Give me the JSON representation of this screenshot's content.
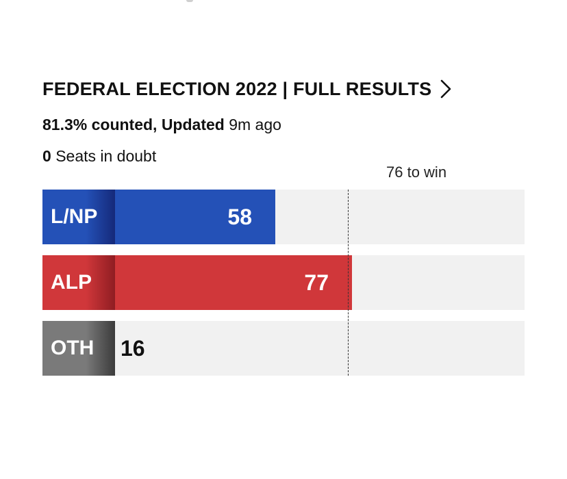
{
  "header": {
    "title": "FEDERAL ELECTION 2022 | FULL RESULTS",
    "chevron_icon": "chevron-right-icon"
  },
  "status": {
    "counted_prefix": "81.3% counted, Updated",
    "updated_ago": "9m ago"
  },
  "doubt": {
    "count": "0",
    "label": "Seats in doubt"
  },
  "win_label": "76 to win",
  "colors": {
    "lnp": "#2451b7",
    "lnp_dark": "#15297a",
    "alp": "#d0373a",
    "alp_dark": "#8f1d22",
    "oth": "#7a7a7a",
    "oth_dark": "#3b3b3b",
    "track": "#f1f1f1"
  },
  "chart_data": {
    "type": "bar",
    "orientation": "horizontal",
    "categories": [
      "L/NP",
      "ALP",
      "OTH"
    ],
    "values": [
      58,
      77,
      16
    ],
    "threshold": 76,
    "xlim": [
      0,
      120
    ],
    "title": "",
    "xlabel": "",
    "ylabel": ""
  }
}
